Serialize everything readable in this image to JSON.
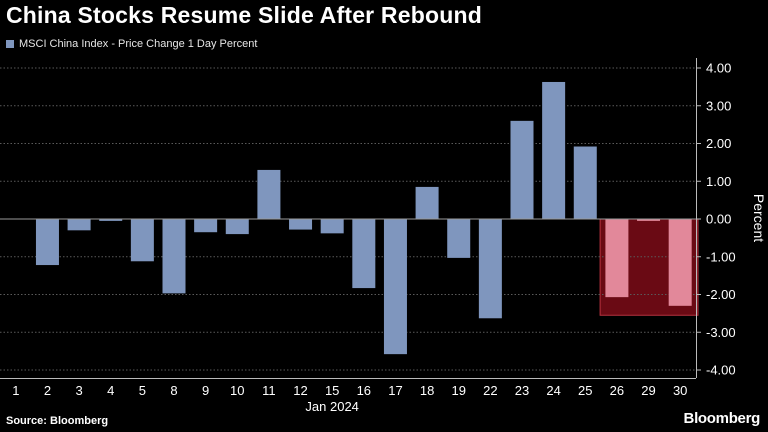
{
  "title": "China Stocks Resume Slide After Rebound",
  "source": "Source: Bloomberg",
  "brand": "Bloomberg",
  "colors": {
    "background": "#000000",
    "bar": "#7f96be",
    "highlight_fill": "#6a0a14",
    "highlight_border": "#b8323f",
    "highlight_bar": "#e2889a",
    "grid": "#5a5a5a",
    "text": "#ffffff"
  },
  "chart_data": {
    "type": "bar",
    "series": [
      {
        "name": "MSCI China Index - Price Change 1 Day Percent",
        "values": [
          -0.02,
          -1.22,
          -0.3,
          -0.05,
          -1.12,
          -1.97,
          -0.35,
          -0.4,
          1.3,
          -0.28,
          -0.38,
          -1.83,
          -3.58,
          0.85,
          -1.03,
          -2.63,
          2.6,
          3.63,
          1.92,
          -2.07,
          -0.05,
          -2.3
        ]
      }
    ],
    "categories": [
      "1",
      "2",
      "3",
      "4",
      "5",
      "8",
      "9",
      "10",
      "11",
      "12",
      "15",
      "16",
      "17",
      "18",
      "19",
      "22",
      "23",
      "24",
      "25",
      "26",
      "29",
      "30"
    ],
    "xlabel": "Jan 2024",
    "ylabel": "Percent",
    "ylim": [
      -4,
      4
    ],
    "yticks": [
      "4.00",
      "3.00",
      "2.00",
      "1.00",
      "0.00",
      "-1.00",
      "-2.00",
      "-3.00",
      "-4.00"
    ],
    "ytick_values": [
      4,
      3,
      2,
      1,
      0,
      -1,
      -2,
      -3,
      -4
    ],
    "grid": true,
    "highlight_categories": [
      "26",
      "29",
      "30"
    ]
  }
}
